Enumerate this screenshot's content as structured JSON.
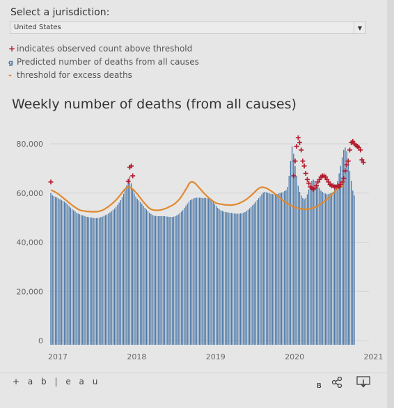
{
  "filter": {
    "label": "Select a jurisdiction:",
    "selected": "United States"
  },
  "legend": [
    {
      "symbol": "+",
      "text": "indicates observed count above threshold",
      "color": "#b2182b"
    },
    {
      "symbol": "g",
      "text": "Predicted number of deaths from all causes",
      "color": "#4e79a7"
    },
    {
      "symbol": "-",
      "text": "threshold for excess deaths",
      "color": "#e08a2e"
    }
  ],
  "footer": {
    "logo": "+ a b | e a u",
    "b_label": "B",
    "icons": [
      "share-icon",
      "download-icon"
    ]
  },
  "colors": {
    "bar": "#4e79a7",
    "threshold": "#e08a2e",
    "marker": "#b2182b"
  },
  "chart_data": {
    "type": "bar",
    "title": "Weekly number of deaths (from all causes)",
    "xlabel": "",
    "ylabel": "",
    "ylim": [
      0,
      85000
    ],
    "yticks": [
      0,
      20000,
      40000,
      60000,
      80000
    ],
    "ytick_labels": [
      "0",
      "20,000",
      "40,000",
      "60,000",
      "80,000"
    ],
    "xtick_labels": [
      "2017",
      "2018",
      "2019",
      "2020",
      "2021"
    ],
    "xtick_weeks": [
      0,
      52,
      104,
      156,
      208
    ],
    "series": [
      {
        "values": [
          60000,
          59200,
          58800,
          58400,
          58200,
          57800,
          57500,
          57200,
          56800,
          56500,
          56000,
          55400,
          54800,
          54100,
          53500,
          53000,
          52500,
          52000,
          51700,
          51400,
          51100,
          50900,
          50700,
          50500,
          50300,
          50200,
          50100,
          50000,
          49900,
          49800,
          49800,
          49900,
          50000,
          50200,
          50400,
          50700,
          51000,
          51300,
          51700,
          52100,
          52600,
          53100,
          53700,
          54400,
          55200,
          56100,
          57100,
          58300,
          59700,
          61300,
          63200,
          65500,
          66800,
          64000,
          61500,
          59800,
          58600,
          57700,
          57000,
          56300,
          55600,
          54800,
          54000,
          53300,
          52600,
          52000,
          51500,
          51100,
          50800,
          50700,
          50600,
          50600,
          50600,
          50600,
          50600,
          50600,
          50500,
          50400,
          50300,
          50300,
          50300,
          50400,
          50600,
          50900,
          51300,
          51800,
          52400,
          53100,
          53900,
          54800,
          55700,
          56500,
          57100,
          57500,
          57800,
          58000,
          58100,
          58100,
          58100,
          58100,
          58000,
          58000,
          58000,
          57900,
          57800,
          57500,
          57000,
          56300,
          55500,
          54700,
          54000,
          53400,
          53000,
          52700,
          52500,
          52300,
          52200,
          52100,
          52000,
          51900,
          51800,
          51700,
          51600,
          51600,
          51600,
          51700,
          51800,
          52000,
          52300,
          52700,
          53200,
          53800,
          54400,
          55000,
          55700,
          56400,
          57100,
          57900,
          58700,
          59500,
          60200,
          60500,
          60300,
          60100,
          59900,
          59700,
          59600,
          59500,
          59500,
          59600,
          59800,
          60000,
          60200,
          60400,
          60800,
          61200,
          62500,
          67000,
          73000,
          79000,
          76000,
          71000,
          67000,
          63000,
          60500,
          59000,
          58000,
          57500,
          58000,
          59500,
          61500,
          63500,
          65000,
          65500,
          65000,
          64000,
          63000,
          62000,
          61000,
          60500,
          60000,
          59800,
          59500,
          59600,
          59800,
          60000,
          60500,
          61500,
          63000,
          65000,
          68000,
          71000,
          74500,
          77500,
          78500,
          77000,
          73000,
          69000,
          65000,
          61000,
          59000
        ]
      }
    ],
    "threshold_line": [
      61200,
      61000,
      60700,
      60400,
      60000,
      59600,
      59100,
      58600,
      58100,
      57600,
      57100,
      56600,
      56100,
      55600,
      55100,
      54600,
      54200,
      53800,
      53400,
      53100,
      52900,
      52800,
      52700,
      52600,
      52500,
      52500,
      52400,
      52400,
      52400,
      52400,
      52400,
      52500,
      52600,
      52800,
      53000,
      53300,
      53700,
      54100,
      54500,
      55000,
      55500,
      56000,
      56600,
      57200,
      57900,
      58600,
      59400,
      60200,
      61000,
      61700,
      62300,
      62400,
      62300,
      62000,
      61600,
      61000,
      60300,
      59600,
      58800,
      58000,
      57200,
      56400,
      55700,
      55000,
      54300,
      53800,
      53400,
      53200,
      53100,
      53000,
      53000,
      53000,
      53100,
      53200,
      53400,
      53600,
      53800,
      54100,
      54400,
      54700,
      55000,
      55400,
      55800,
      56400,
      57000,
      57700,
      58500,
      59500,
      60500,
      61500,
      62500,
      63700,
      64400,
      64600,
      64400,
      64000,
      63400,
      62700,
      62000,
      61300,
      60600,
      59900,
      59300,
      58700,
      58100,
      57600,
      57100,
      56600,
      56200,
      55900,
      55700,
      55600,
      55500,
      55400,
      55300,
      55200,
      55200,
      55100,
      55100,
      55100,
      55200,
      55300,
      55400,
      55600,
      55800,
      56100,
      56400,
      56700,
      57100,
      57500,
      58000,
      58500,
      59000,
      59600,
      60200,
      60800,
      61400,
      61900,
      62200,
      62400,
      62300,
      62200,
      62000,
      61700,
      61300,
      60900,
      60500,
      60000,
      59500,
      59000,
      58500,
      58000,
      57500,
      57000,
      56500,
      56100,
      55700,
      55300,
      55000,
      54700,
      54400,
      54200,
      54000,
      53800,
      53700,
      53600,
      53500,
      53400,
      53400,
      53400,
      53500,
      53600,
      53800,
      54000,
      54200,
      54500,
      54800,
      55200,
      55600,
      56000,
      56500,
      57000,
      57500,
      58000,
      58600,
      59200,
      59800,
      60500,
      61200,
      61800,
      62300,
      62600,
      62700,
      62800
    ],
    "above_threshold_weeks": [
      0,
      51,
      52,
      53,
      54,
      160,
      161,
      162,
      163,
      164,
      165,
      166,
      167,
      168,
      169,
      170,
      171,
      172,
      173,
      174,
      175,
      176,
      177,
      178,
      179,
      180,
      181,
      182,
      183,
      184,
      185,
      186,
      187,
      188,
      189,
      190,
      191,
      192,
      193,
      194,
      195,
      196,
      197,
      198,
      199,
      200,
      201,
      202,
      203,
      204,
      205,
      206
    ],
    "above_threshold_values": [
      64500,
      64800,
      70500,
      71000,
      67000,
      67000,
      73000,
      79000,
      82500,
      80500,
      77500,
      73000,
      71000,
      68000,
      65500,
      64000,
      62500,
      62000,
      61500,
      62000,
      63000,
      64500,
      65500,
      66500,
      67000,
      67000,
      66500,
      65500,
      64500,
      63500,
      63000,
      63000,
      62500,
      62500,
      63000,
      62500,
      63500,
      64500,
      66000,
      69000,
      71500,
      73000,
      77500,
      80500,
      81000,
      80000,
      79500,
      79000,
      78500,
      77500,
      73500,
      72500
    ]
  }
}
